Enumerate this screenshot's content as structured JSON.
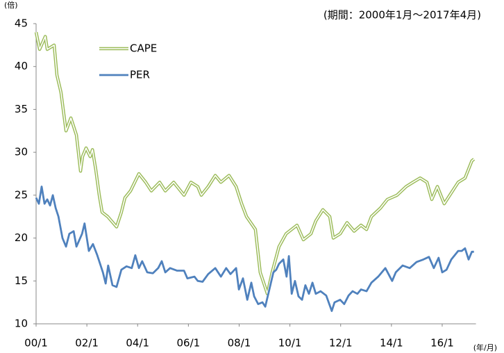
{
  "chart_data": {
    "type": "line",
    "subtitle": "(期間：2000年1月～2017年4月)",
    "y_label": "(倍)",
    "x_label": "(年/月)",
    "xlim": [
      2000,
      2017.33
    ],
    "xticks": [
      {
        "value": 2000,
        "label": "00/1"
      },
      {
        "value": 2002,
        "label": "02/1"
      },
      {
        "value": 2004,
        "label": "04/1"
      },
      {
        "value": 2006,
        "label": "06/1"
      },
      {
        "value": 2008,
        "label": "08/1"
      },
      {
        "value": 2010,
        "label": "10/1"
      },
      {
        "value": 2012,
        "label": "12/1"
      },
      {
        "value": 2014,
        "label": "14/1"
      },
      {
        "value": 2016,
        "label": "16/1"
      }
    ],
    "ylim": [
      10,
      45
    ],
    "yticks": [
      10,
      15,
      20,
      25,
      30,
      35,
      40,
      45
    ],
    "grid": false,
    "series": [
      {
        "name": "CAPE",
        "color": "#9bbb59",
        "style": "double",
        "x": [
          2000,
          2000.14,
          2000.36,
          2000.44,
          2000.71,
          2000.82,
          2000.98,
          2001.18,
          2001.37,
          2001.59,
          2001.75,
          2001.83,
          2001.97,
          2002.13,
          2002.22,
          2002.35,
          2002.49,
          2002.6,
          2002.82,
          2003.17,
          2003.36,
          2003.5,
          2003.72,
          2004.05,
          2004.32,
          2004.54,
          2004.87,
          2005.09,
          2005.42,
          2005.83,
          2006.1,
          2006.37,
          2006.51,
          2006.78,
          2007.06,
          2007.28,
          2007.6,
          2007.88,
          2008.1,
          2008.29,
          2008.64,
          2008.83,
          2009.11,
          2009.3,
          2009.57,
          2009.85,
          2010.28,
          2010.53,
          2010.83,
          2011.02,
          2011.3,
          2011.57,
          2011.71,
          2011.98,
          2012.25,
          2012.53,
          2012.8,
          2013.02,
          2013.21,
          2013.57,
          2013.84,
          2014.22,
          2014.58,
          2014.85,
          2015.13,
          2015.4,
          2015.59,
          2015.81,
          2016.08,
          2016.3,
          2016.63,
          2016.9,
          2017.17,
          2017.25
        ],
        "values": [
          44,
          42,
          43.5,
          42,
          42.5,
          39,
          37,
          32.5,
          34,
          32,
          27.8,
          29.5,
          30.5,
          29.5,
          30.3,
          28,
          25,
          23,
          22.5,
          21.3,
          23,
          24.7,
          25.5,
          27.5,
          26.5,
          25.5,
          26.5,
          25.5,
          26.5,
          25,
          26.5,
          26,
          25,
          26,
          27.3,
          26.5,
          27.3,
          26,
          24,
          22.5,
          21,
          16,
          13.5,
          16,
          19,
          20.5,
          21.5,
          19.8,
          20.5,
          22,
          23.3,
          22.5,
          20,
          20.5,
          21.8,
          20.8,
          21.5,
          21,
          22.5,
          23.5,
          24.5,
          25,
          26,
          26.5,
          27,
          26.5,
          24.5,
          26,
          24,
          25,
          26.5,
          27,
          29,
          29.2
        ]
      },
      {
        "name": "PER",
        "color": "#4f81bd",
        "style": "solid",
        "x": [
          2000,
          2000.11,
          2000.22,
          2000.33,
          2000.44,
          2000.55,
          2000.66,
          2000.77,
          2000.88,
          2001.04,
          2001.18,
          2001.31,
          2001.48,
          2001.59,
          2001.81,
          2001.91,
          2002.08,
          2002.24,
          2002.41,
          2002.63,
          2002.74,
          2002.84,
          2003.01,
          2003.17,
          2003.36,
          2003.56,
          2003.77,
          2003.91,
          2004.05,
          2004.18,
          2004.38,
          2004.6,
          2004.81,
          2004.95,
          2005.09,
          2005.28,
          2005.55,
          2005.83,
          2005.96,
          2006.24,
          2006.37,
          2006.56,
          2006.78,
          2007.06,
          2007.28,
          2007.49,
          2007.66,
          2007.88,
          2007.99,
          2008.15,
          2008.32,
          2008.48,
          2008.59,
          2008.75,
          2008.92,
          2009.03,
          2009.19,
          2009.35,
          2009.46,
          2009.57,
          2009.74,
          2009.87,
          2009.96,
          2010.07,
          2010.2,
          2010.34,
          2010.48,
          2010.61,
          2010.75,
          2010.89,
          2011.02,
          2011.21,
          2011.43,
          2011.65,
          2011.76,
          2011.98,
          2012.14,
          2012.31,
          2012.47,
          2012.66,
          2012.8,
          2013.02,
          2013.21,
          2013.48,
          2013.76,
          2014.03,
          2014.17,
          2014.44,
          2014.72,
          2014.99,
          2015.26,
          2015.48,
          2015.67,
          2015.86,
          2016,
          2016.17,
          2016.36,
          2016.63,
          2016.77,
          2016.9,
          2017.04,
          2017.17,
          2017.25
        ],
        "values": [
          24.7,
          24,
          26,
          24,
          24.5,
          23.8,
          25,
          23.5,
          22.5,
          20,
          19,
          20.5,
          20.8,
          19,
          20.5,
          21.7,
          18.5,
          19.3,
          18,
          16,
          14.7,
          16.8,
          14.5,
          14.3,
          16.3,
          16.7,
          16.5,
          18,
          16.5,
          17.3,
          16,
          15.9,
          16.5,
          17.3,
          16,
          16.5,
          16.2,
          16.2,
          15.3,
          15.5,
          15,
          14.9,
          15.8,
          16.5,
          15.5,
          16.5,
          15.8,
          16.5,
          14,
          15.3,
          12.8,
          14.8,
          13.2,
          12.3,
          12.5,
          12,
          14,
          16,
          16.3,
          17,
          17.5,
          15.5,
          17.9,
          13.5,
          15,
          13.2,
          12.8,
          14.5,
          13.5,
          14.8,
          13.5,
          13.8,
          13.3,
          11.5,
          12.5,
          12.8,
          12.3,
          13.3,
          13.8,
          13.5,
          14,
          13.8,
          14.8,
          15.5,
          16.5,
          15,
          16,
          16.8,
          16.5,
          17.2,
          17.5,
          17.8,
          16.5,
          17.7,
          16,
          16.3,
          17.5,
          18.5,
          18.5,
          18.8,
          17.5,
          18.4,
          18.4
        ]
      }
    ]
  }
}
